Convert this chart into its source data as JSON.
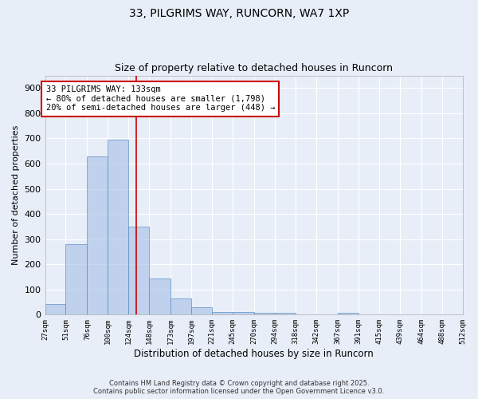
{
  "title1": "33, PILGRIMS WAY, RUNCORN, WA7 1XP",
  "title2": "Size of property relative to detached houses in Runcorn",
  "xlabel": "Distribution of detached houses by size in Runcorn",
  "ylabel": "Number of detached properties",
  "bin_edges": [
    27,
    51,
    76,
    100,
    124,
    148,
    173,
    197,
    221,
    245,
    270,
    294,
    318,
    342,
    367,
    391,
    415,
    439,
    464,
    488,
    512
  ],
  "bar_heights": [
    42,
    280,
    630,
    695,
    350,
    145,
    65,
    30,
    12,
    10,
    8,
    8,
    0,
    0,
    8,
    0,
    0,
    0,
    0,
    0
  ],
  "bar_color": "#aec6e8",
  "bar_edge_color": "#5a8fc2",
  "bar_alpha": 0.7,
  "vline_x": 133,
  "vline_color": "#cc0000",
  "annotation_text": "33 PILGRIMS WAY: 133sqm\n← 80% of detached houses are smaller (1,798)\n20% of semi-detached houses are larger (448) →",
  "annotation_box_color": "#ffffff",
  "annotation_border_color": "#cc0000",
  "annotation_fontsize": 7.5,
  "ylim": [
    0,
    950
  ],
  "yticks": [
    0,
    100,
    200,
    300,
    400,
    500,
    600,
    700,
    800,
    900
  ],
  "background_color": "#e8eef8",
  "grid_color": "#ffffff",
  "footer_line1": "Contains HM Land Registry data © Crown copyright and database right 2025.",
  "footer_line2": "Contains public sector information licensed under the Open Government Licence v3.0.",
  "title_fontsize": 10,
  "subtitle_fontsize": 9,
  "xlabel_fontsize": 8.5,
  "ylabel_fontsize": 8
}
